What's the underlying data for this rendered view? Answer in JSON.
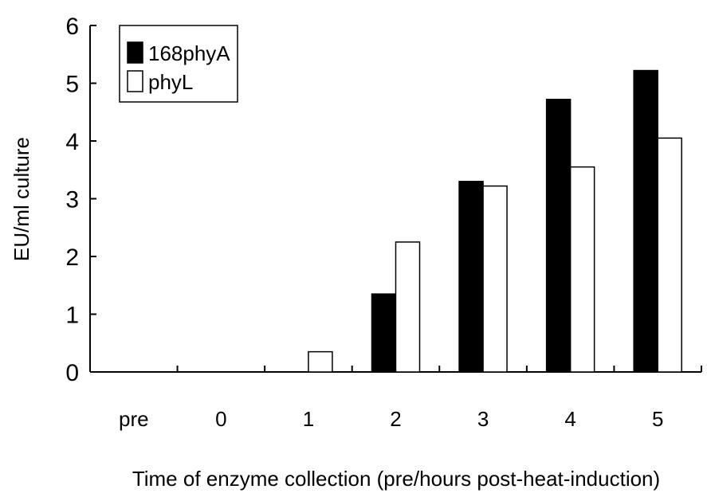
{
  "chart_data": {
    "type": "bar",
    "title": "",
    "xlabel": "Time of enzyme collection (pre/hours post-heat-induction)",
    "ylabel": "EU/ml culture",
    "ylim": [
      0,
      6
    ],
    "yticks": [
      "0",
      "1",
      "2",
      "3",
      "4",
      "5",
      "6"
    ],
    "categories": [
      "pre",
      "0",
      "1",
      "2",
      "3",
      "4",
      "5"
    ],
    "series": [
      {
        "name": "168phyA",
        "color": "#000000",
        "values": [
          0,
          0,
          0,
          1.35,
          3.3,
          4.72,
          5.22
        ]
      },
      {
        "name": "phyL",
        "color": "#ffffff",
        "values": [
          0,
          0,
          0.35,
          2.25,
          3.22,
          3.55,
          4.05
        ]
      }
    ],
    "legend": "top-left",
    "grid": false
  }
}
